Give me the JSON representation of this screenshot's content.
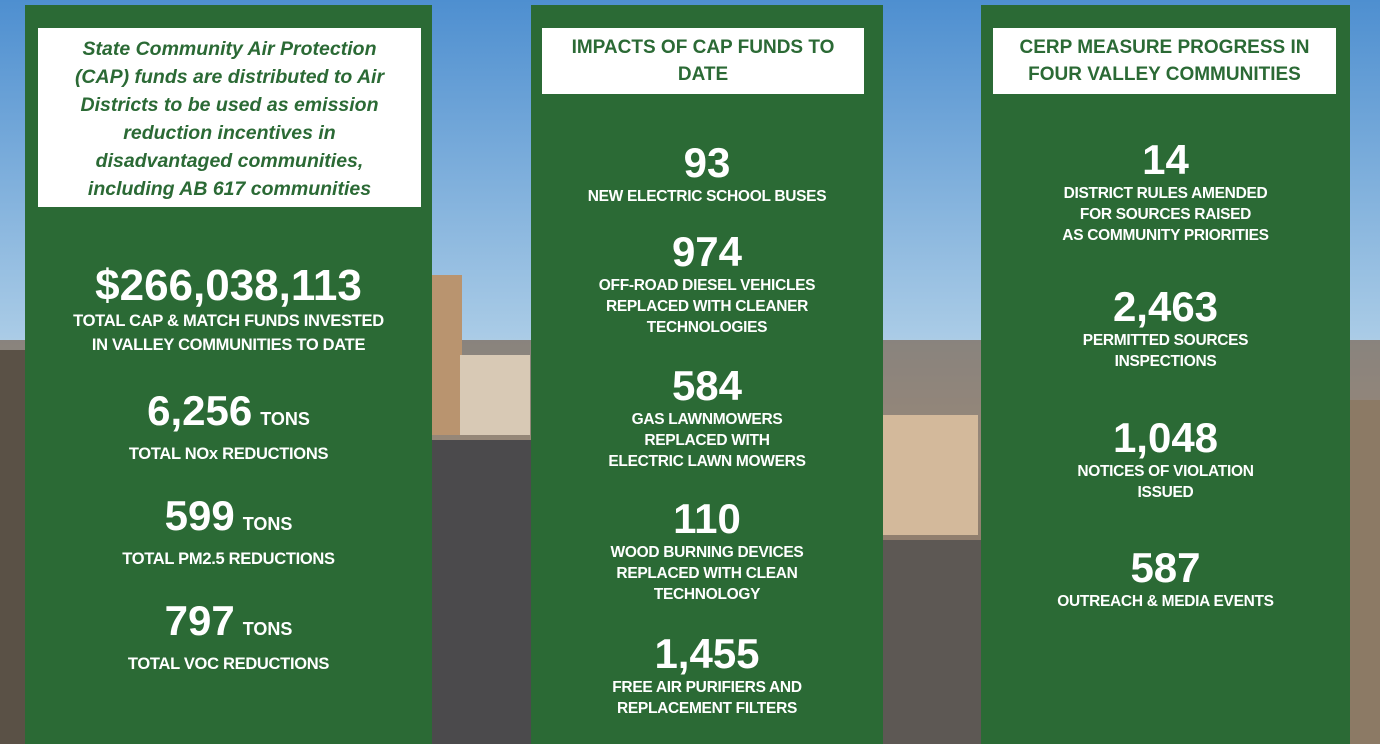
{
  "panels": [
    {
      "header": [
        "State Community Air Protection",
        "(CAP) funds are distributed to Air",
        "Districts to be used as emission",
        "reduction incentives in",
        "disadvantaged communities,",
        "including AB 617 communities"
      ],
      "stats": [
        {
          "value": "$266,038,113",
          "label": [
            "TOTAL CAP & MATCH FUNDS INVESTED",
            "IN VALLEY COMMUNITIES TO DATE"
          ]
        },
        {
          "value": "6,256",
          "unit": "TONS",
          "label": [
            "TOTAL NOx REDUCTIONS"
          ]
        },
        {
          "value": "599",
          "unit": "TONS",
          "label": [
            "TOTAL PM2.5 REDUCTIONS"
          ]
        },
        {
          "value": "797",
          "unit": "TONS",
          "label": [
            "TOTAL VOC REDUCTIONS"
          ]
        }
      ]
    },
    {
      "header": [
        "IMPACTS OF CAP FUNDS TO",
        "DATE"
      ],
      "stats": [
        {
          "value": "93",
          "label": [
            "NEW ELECTRIC SCHOOL BUSES"
          ]
        },
        {
          "value": "974",
          "label": [
            "OFF-ROAD DIESEL VEHICLES",
            "REPLACED WITH CLEANER",
            "TECHNOLOGIES"
          ]
        },
        {
          "value": "584",
          "label": [
            "GAS LAWNMOWERS",
            "REPLACED WITH",
            "ELECTRIC LAWN MOWERS"
          ]
        },
        {
          "value": "110",
          "label": [
            "WOOD BURNING DEVICES",
            "REPLACED WITH CLEAN",
            "TECHNOLOGY"
          ]
        },
        {
          "value": "1,455",
          "label": [
            "FREE AIR PURIFIERS AND",
            "REPLACEMENT FILTERS"
          ]
        }
      ]
    },
    {
      "header": [
        "CERP MEASURE PROGRESS IN",
        "FOUR VALLEY COMMUNITIES"
      ],
      "stats": [
        {
          "value": "14",
          "label": [
            "DISTRICT RULES AMENDED",
            "FOR SOURCES RAISED",
            "AS COMMUNITY PRIORITIES"
          ]
        },
        {
          "value": "2,463",
          "label": [
            "PERMITTED SOURCES",
            "INSPECTIONS"
          ]
        },
        {
          "value": "1,048",
          "label": [
            "NOTICES OF VIOLATION",
            "ISSUED"
          ]
        },
        {
          "value": "587",
          "label": [
            "OUTREACH & MEDIA EVENTS"
          ]
        }
      ]
    }
  ]
}
